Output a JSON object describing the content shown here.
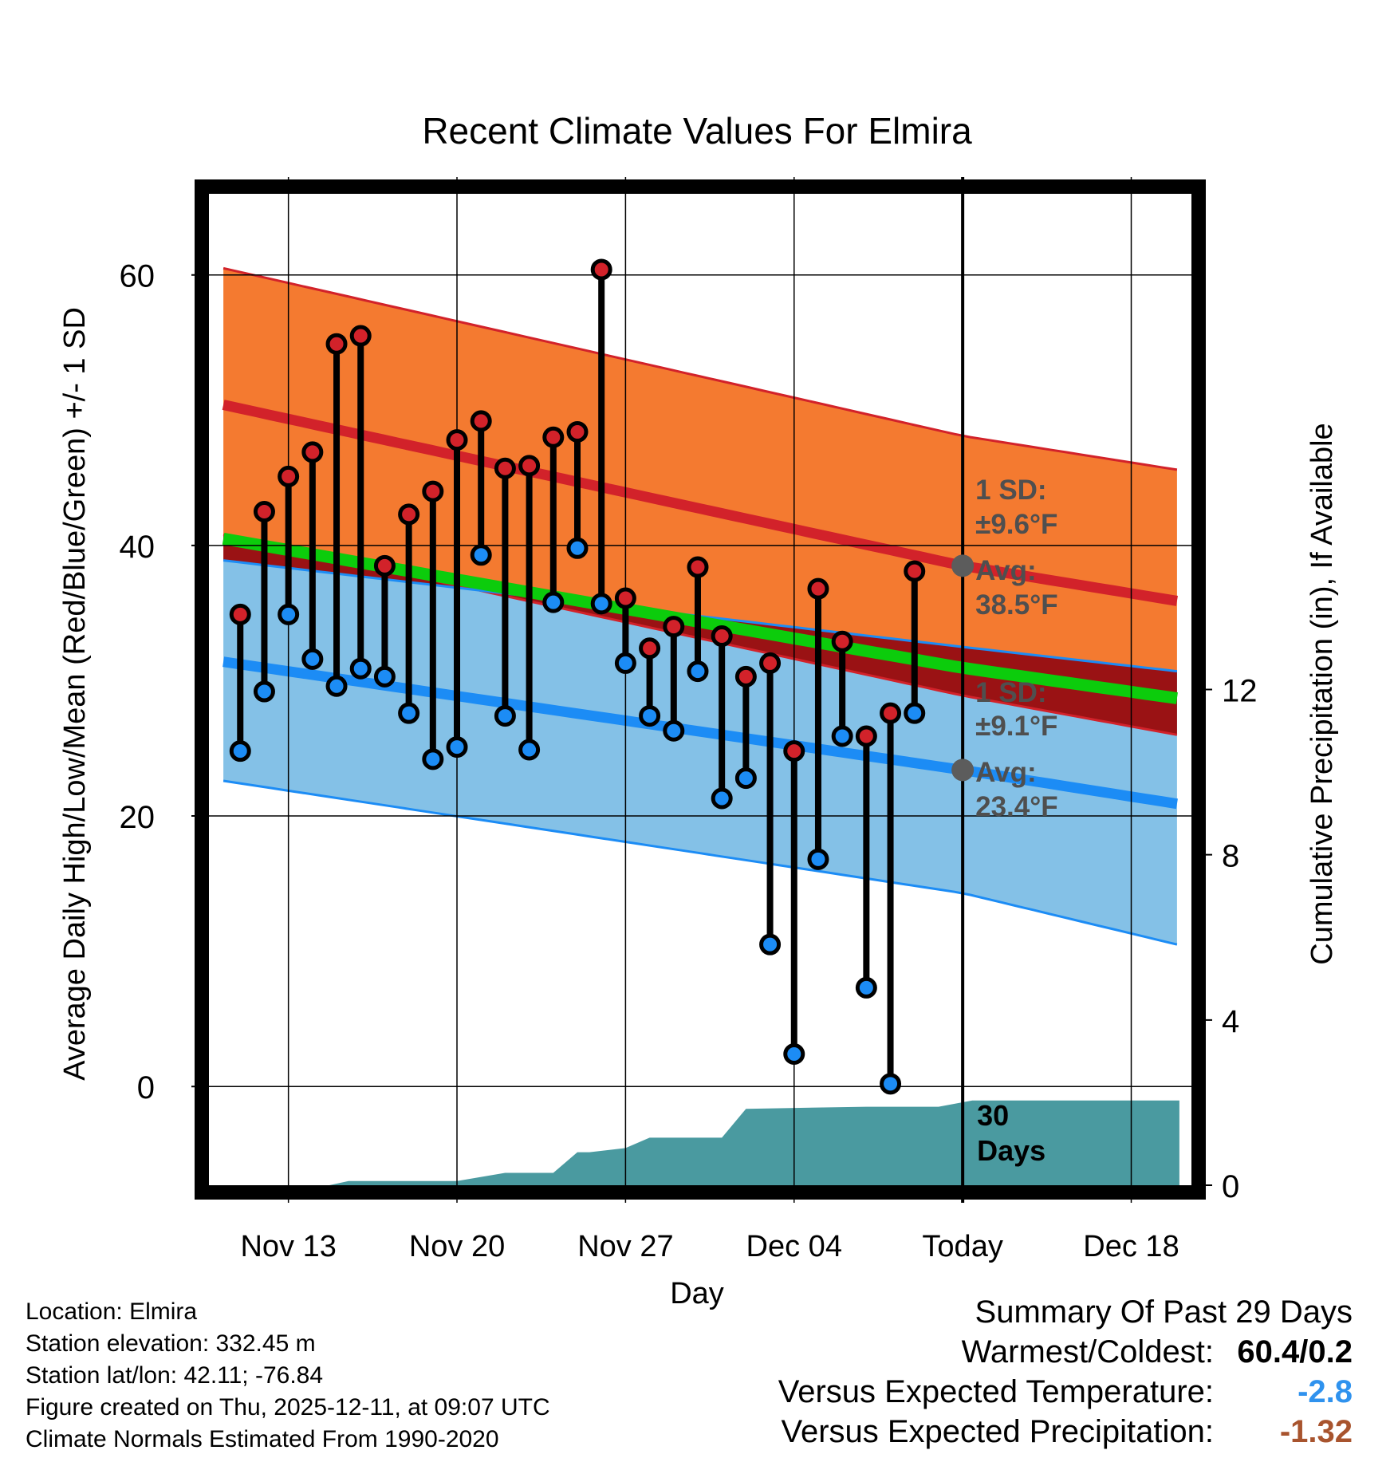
{
  "chart_data": {
    "type": "line",
    "title": "Recent Climate Values For Elmira",
    "xlabel": "Day",
    "ylabel": "Average Daily High/Low/Mean (Red/Blue/Green) +/- 1 SD",
    "y2label": "Cumulative Precipitation (in), If Available",
    "ylim": [
      -7.3,
      66
    ],
    "y_ticks": [
      0,
      20,
      40,
      60
    ],
    "y2lim": [
      0,
      24
    ],
    "y2_ticks": [
      0,
      4,
      8,
      12
    ],
    "xlim": [
      -3.3,
      37.5
    ],
    "x_ticks": [
      {
        "day": 0,
        "label": "Nov 13"
      },
      {
        "day": 7,
        "label": "Nov 20"
      },
      {
        "day": 14,
        "label": "Nov 27"
      },
      {
        "day": 21,
        "label": "Dec 04"
      },
      {
        "day": 28,
        "label": "Today"
      },
      {
        "day": 35,
        "label": "Dec 18"
      }
    ],
    "today_day": 28,
    "normals": {
      "days": [
        -2.7,
        28,
        36.9
      ],
      "high_upper": [
        60.5,
        48.1,
        45.6
      ],
      "high_mean": [
        50.4,
        38.5,
        35.9
      ],
      "high_lower": [
        40.8,
        28.9,
        26.0
      ],
      "mean": [
        40.5,
        30.95,
        28.7
      ],
      "low_upper": [
        38.9,
        32.5,
        30.7
      ],
      "low_mean": [
        31.4,
        23.4,
        20.9
      ],
      "low_lower": [
        22.6,
        14.3,
        10.5
      ]
    },
    "observed": {
      "days": [
        -2,
        -1,
        0,
        1,
        2,
        3,
        4,
        5,
        6,
        7,
        8,
        9,
        10,
        11,
        12,
        13,
        14,
        15,
        16,
        17,
        18,
        19,
        20,
        21,
        22,
        23,
        24,
        25,
        26
      ],
      "high": [
        34.9,
        42.5,
        45.1,
        46.9,
        54.9,
        55.5,
        38.5,
        42.3,
        44.0,
        47.8,
        49.2,
        45.7,
        45.9,
        48.0,
        48.4,
        60.4,
        36.1,
        32.4,
        34.0,
        38.4,
        33.3,
        30.3,
        31.3,
        24.8,
        36.8,
        32.9,
        25.9,
        27.6,
        38.1
      ],
      "low": [
        24.8,
        29.2,
        34.9,
        31.6,
        29.6,
        30.9,
        30.3,
        27.6,
        24.2,
        25.1,
        39.3,
        27.4,
        24.9,
        35.8,
        39.8,
        35.7,
        31.3,
        27.4,
        26.3,
        30.7,
        21.3,
        22.8,
        10.5,
        2.4,
        16.8,
        25.9,
        7.3,
        0.2,
        27.6
      ]
    },
    "precip": {
      "days": [
        -3,
        -1,
        1.7,
        2.5,
        7,
        9,
        10,
        11,
        12,
        12.5,
        14,
        15,
        18,
        19,
        24,
        27,
        28.4,
        37
      ],
      "values": [
        0,
        0,
        0,
        0.1,
        0.1,
        0.3,
        0.3,
        0.3,
        0.8,
        0.8,
        0.9,
        1.15,
        1.15,
        1.85,
        1.9,
        1.9,
        2.05,
        2.05
      ]
    },
    "annotations": {
      "high_sd_label": "1 SD:",
      "high_sd_value": "±9.6°F",
      "high_avg_label": "Avg:",
      "high_avg_value": "38.5°F",
      "low_sd_label": "1 SD:",
      "low_sd_value": "±9.1°F",
      "low_avg_label": "Avg:",
      "low_avg_value": "23.4°F",
      "days_count": "30",
      "days_word": "Days"
    }
  },
  "footer": {
    "location": "Location: Elmira",
    "elevation": "Station elevation: 332.45 m",
    "latlon": "Station lat/lon: 42.11; -76.84",
    "created": "Figure created on Thu, 2025-12-11, at 09:07 UTC",
    "normals": "Climate Normals Estimated From 1990-2020"
  },
  "summary": {
    "title": "Summary Of Past 29 Days",
    "warmest_label": "Warmest/Coldest:",
    "warmest_value": "60.4/0.2",
    "temp_label": "Versus Expected Temperature:",
    "temp_value": "-2.8",
    "precip_label": "Versus Expected Precipitation:",
    "precip_value": "-1.32"
  },
  "colors": {
    "high_band": "#f47a30",
    "high_line": "#d2222a",
    "low_band": "#84c1e7",
    "low_line": "#1c8cf5",
    "overlap_band": "#9a1214",
    "mean_line": "#0ccc0c",
    "precip_fill": "#4a9aa0",
    "label_text": "#4f4f4f",
    "temp_delta": "#2f92ee",
    "precip_delta": "#a8542e"
  }
}
